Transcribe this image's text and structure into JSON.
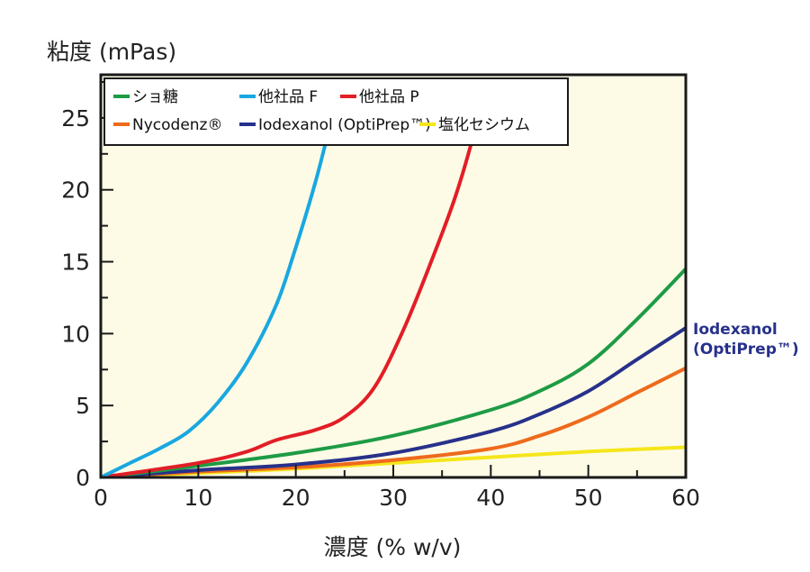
{
  "chart_data": {
    "type": "line",
    "ylabel": "粘度 (mPas)",
    "xlabel": "濃度 (% w/v)",
    "xlim": [
      0,
      60
    ],
    "ylim": [
      0,
      28
    ],
    "xticks": [
      0,
      10,
      20,
      30,
      40,
      50,
      60
    ],
    "yticks": [
      0,
      5,
      10,
      15,
      20,
      25
    ],
    "grid": false,
    "legend_position": "top-left",
    "plot_background": "#fdfbe6",
    "series": [
      {
        "name": "ショ糖",
        "color": "#1e9b45",
        "x": [
          0,
          10,
          20,
          30,
          40,
          45,
          50,
          55,
          60
        ],
        "y": [
          0,
          0.8,
          1.7,
          2.9,
          4.7,
          6.0,
          7.9,
          11.0,
          14.5
        ]
      },
      {
        "name": "他社品 F",
        "color": "#19a7e0",
        "x": [
          0,
          3,
          6,
          9,
          12,
          15,
          18,
          20,
          22,
          23.5,
          24.5
        ],
        "y": [
          0,
          1.0,
          2.0,
          3.2,
          5.2,
          8.0,
          12.0,
          16.0,
          20.5,
          24.5,
          27.5
        ]
      },
      {
        "name": "他社品 P",
        "color": "#e21e26",
        "x": [
          0,
          10,
          15,
          18,
          22,
          25,
          28,
          31,
          34,
          36.5,
          38.5,
          39.5
        ],
        "y": [
          0,
          1.0,
          1.8,
          2.6,
          3.3,
          4.2,
          6.2,
          10.2,
          15.2,
          19.8,
          24.5,
          27.5
        ]
      },
      {
        "name": "Nycodenz®",
        "color": "#ee6a1c",
        "x": [
          0,
          10,
          20,
          30,
          40,
          45,
          50,
          55,
          60
        ],
        "y": [
          0,
          0.4,
          0.7,
          1.2,
          2.0,
          2.9,
          4.2,
          5.9,
          7.6
        ]
      },
      {
        "name": "Iodexanol (OptiPrep™)",
        "color": "#27318b",
        "x": [
          0,
          10,
          20,
          30,
          40,
          45,
          50,
          55,
          60
        ],
        "y": [
          0,
          0.5,
          0.9,
          1.7,
          3.2,
          4.4,
          6.0,
          8.2,
          10.4
        ]
      },
      {
        "name": "塩化セシウム",
        "color": "#f5e61c",
        "x": [
          0,
          10,
          20,
          30,
          40,
          50,
          60
        ],
        "y": [
          0,
          0.3,
          0.6,
          1.0,
          1.4,
          1.8,
          2.1
        ]
      }
    ],
    "annotation": {
      "line1": "Iodexanol",
      "line2": "(OptiPrep™)"
    }
  }
}
